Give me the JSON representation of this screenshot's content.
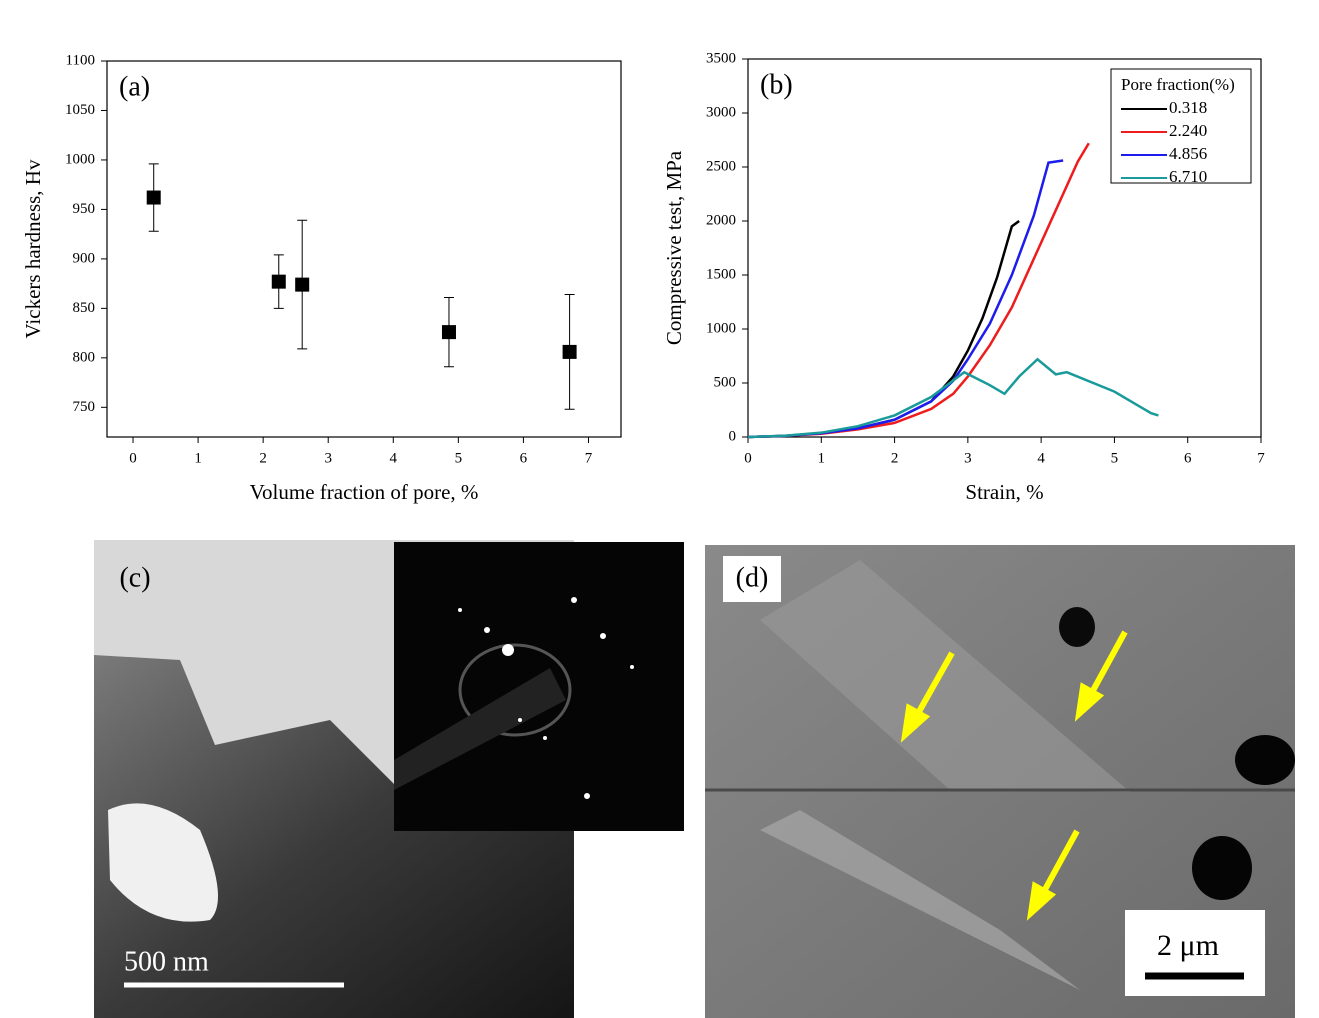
{
  "chart_data": [
    {
      "type": "errorbar",
      "panel_label": "(a)",
      "x_label": "Volume fraction of pore, %",
      "y_label": "Vickers hardness, Hv",
      "series": [
        {
          "color": "#000000",
          "x": [
            0.318,
            2.24,
            2.6,
            4.856,
            6.71
          ],
          "values": [
            962,
            877,
            874,
            826,
            806
          ],
          "errors": [
            34,
            27,
            65,
            35,
            58
          ]
        }
      ],
      "xlim": [
        -0.4,
        7.5
      ],
      "ylim": [
        720,
        1100
      ],
      "xticks": [
        0,
        1,
        2,
        3,
        4,
        5,
        6,
        7
      ],
      "yticks": [
        750,
        800,
        850,
        900,
        950,
        1000,
        1050,
        1100
      ]
    },
    {
      "type": "line",
      "panel_label": "(b)",
      "x_label": "Strain, %",
      "y_label": "Compressive test, MPa",
      "legend_title": "Pore fraction(%)",
      "legend": "upper right",
      "series": [
        {
          "name": "0.318",
          "color": "#000000",
          "x": [
            0,
            0.5,
            1,
            1.5,
            2,
            2.5,
            2.8,
            3.0,
            3.2,
            3.4,
            3.6,
            3.7
          ],
          "values": [
            0,
            10,
            35,
            80,
            160,
            330,
            560,
            800,
            1100,
            1480,
            1950,
            2000
          ]
        },
        {
          "name": "2.240",
          "color": "#ee1c1c",
          "x": [
            0,
            0.5,
            1,
            1.5,
            2,
            2.5,
            2.8,
            3.0,
            3.3,
            3.6,
            3.9,
            4.2,
            4.5,
            4.65
          ],
          "values": [
            0,
            10,
            30,
            70,
            130,
            260,
            400,
            560,
            850,
            1200,
            1650,
            2100,
            2550,
            2720
          ]
        },
        {
          "name": "4.856",
          "color": "#1c1cee",
          "x": [
            0,
            0.5,
            1,
            1.5,
            2,
            2.5,
            2.8,
            3.0,
            3.3,
            3.6,
            3.9,
            4.1,
            4.3
          ],
          "values": [
            0,
            10,
            35,
            80,
            160,
            330,
            520,
            720,
            1050,
            1500,
            2050,
            2540,
            2560
          ]
        },
        {
          "name": "6.710",
          "color": "#1a9a9a",
          "x": [
            0,
            0.5,
            1,
            1.5,
            2,
            2.5,
            2.95,
            3.3,
            3.5,
            3.7,
            3.95,
            4.2,
            4.35,
            5,
            5.5,
            5.6
          ],
          "values": [
            0,
            12,
            40,
            100,
            200,
            370,
            600,
            480,
            400,
            560,
            720,
            580,
            600,
            420,
            220,
            200
          ]
        }
      ],
      "xlim": [
        0,
        7
      ],
      "ylim": [
        0,
        3500
      ],
      "xticks": [
        0,
        1,
        2,
        3,
        4,
        5,
        6,
        7
      ],
      "yticks": [
        0,
        500,
        1000,
        1500,
        2000,
        2500,
        3000,
        3500
      ]
    }
  ],
  "micrographs": [
    {
      "label": "(c)",
      "scale_bar": "500 nm"
    },
    {
      "label": "(d)",
      "scale_bar": "2 μm"
    }
  ]
}
